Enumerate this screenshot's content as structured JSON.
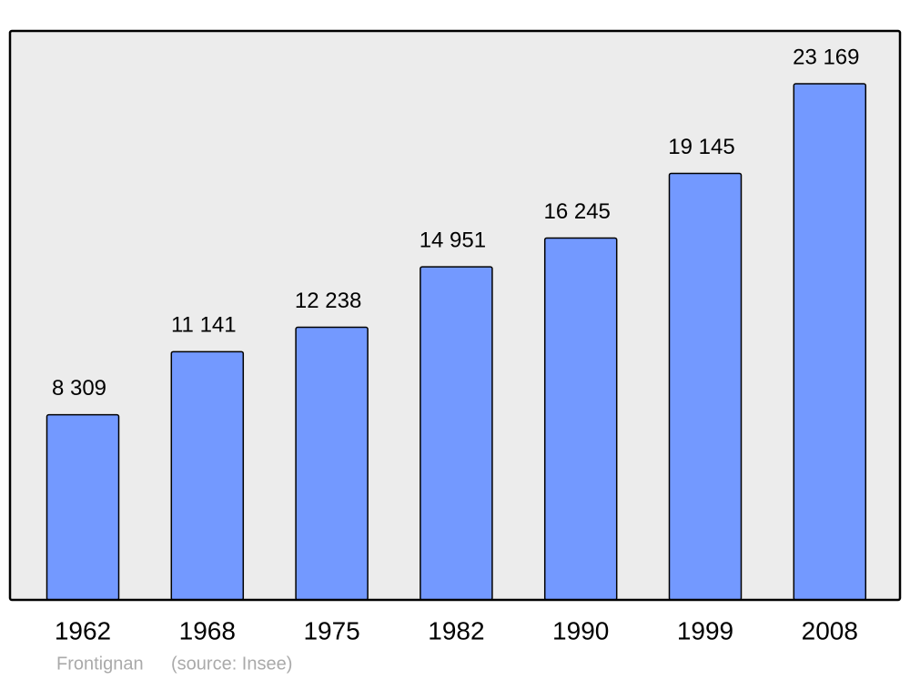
{
  "chart_data": {
    "type": "bar",
    "categories": [
      "1962",
      "1968",
      "1975",
      "1982",
      "1990",
      "1999",
      "2008"
    ],
    "values": [
      8309,
      11141,
      12238,
      14951,
      16245,
      19145,
      23169
    ],
    "value_labels": [
      "8 309",
      "11 141",
      "12 238",
      "14 951",
      "16 245",
      "19 145",
      "23 169"
    ],
    "color": "#7399ff",
    "ylim": [
      0,
      25540
    ],
    "source_name": "Frontignan",
    "source_note": "(source: Insee)"
  }
}
